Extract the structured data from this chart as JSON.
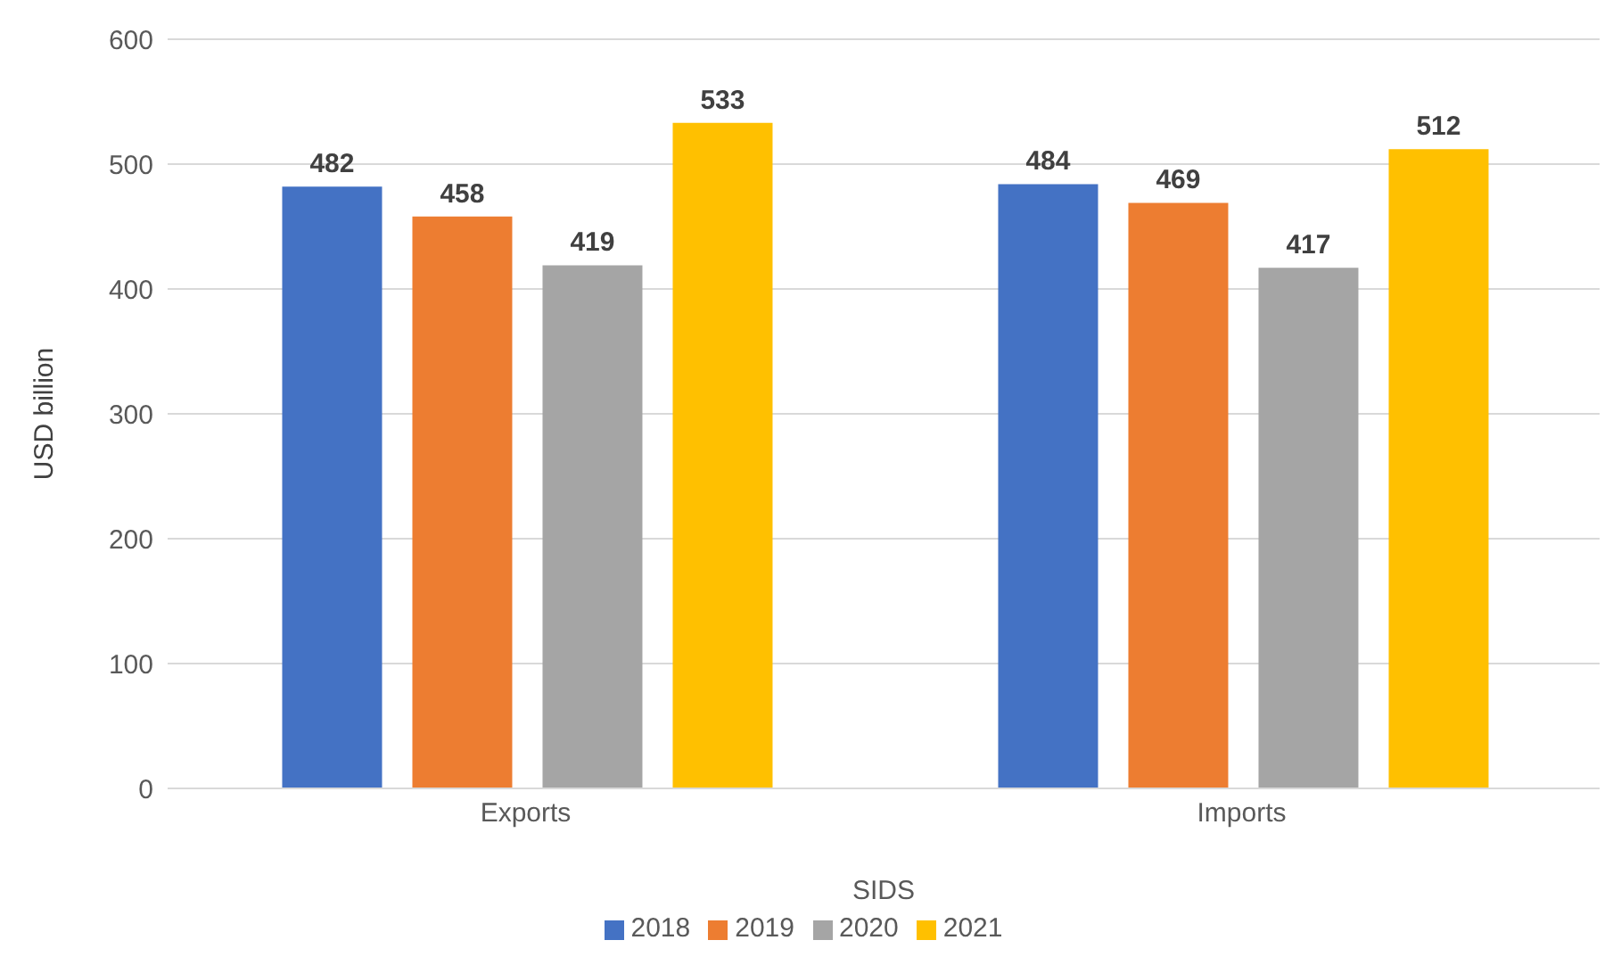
{
  "chart_data": {
    "type": "bar",
    "xlabel": "SIDS",
    "ylabel": "USD billion",
    "categories": [
      "Exports",
      "Imports"
    ],
    "series": [
      {
        "name": "2018",
        "color": "#4472c4",
        "values": [
          482,
          484
        ]
      },
      {
        "name": "2019",
        "color": "#ed7d31",
        "values": [
          458,
          469
        ]
      },
      {
        "name": "2020",
        "color": "#a5a5a5",
        "values": [
          419,
          417
        ]
      },
      {
        "name": "2021",
        "color": "#ffc000",
        "values": [
          533,
          512
        ]
      }
    ],
    "ylim": [
      0,
      600
    ],
    "yticks": [
      0,
      100,
      200,
      300,
      400,
      500,
      600
    ],
    "grid": "y",
    "legend": "bottom",
    "data_labels": true
  }
}
